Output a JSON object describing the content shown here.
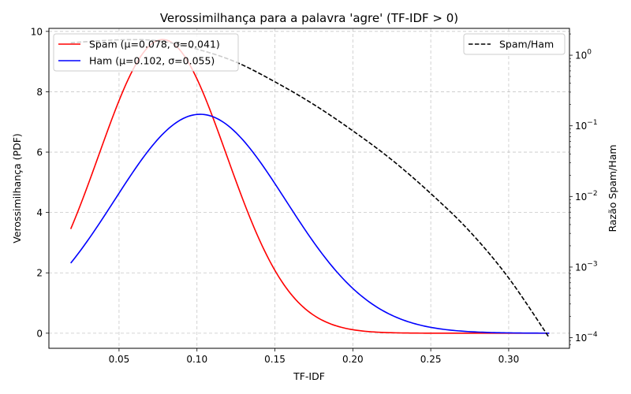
{
  "chart_data": {
    "type": "line",
    "title": "Verossimilhança para a palavra 'agre' (TF-IDF > 0)",
    "xlabel": "TF-IDF",
    "ylabel_left": "Verossimilhança (PDF)",
    "ylabel_right": "Razão Spam/Ham",
    "xlim": [
      0.005,
      0.339
    ],
    "ylim_left": [
      -0.5,
      10.1
    ],
    "ylim_right_log10": [
      -4.15,
      0.38
    ],
    "x_ticks": [
      "0.05",
      "0.10",
      "0.15",
      "0.20",
      "0.25",
      "0.30"
    ],
    "x_tick_values": [
      0.05,
      0.1,
      0.15,
      0.2,
      0.25,
      0.3
    ],
    "y_ticks_left": [
      "0",
      "2",
      "4",
      "6",
      "8",
      "10"
    ],
    "y_tick_values_left": [
      0,
      2,
      4,
      6,
      8,
      10
    ],
    "y_ticks_right_exponents": [
      "0",
      "−1",
      "−2",
      "−3",
      "−4"
    ],
    "y_tick_values_right_log10": [
      0,
      -1,
      -2,
      -3,
      -4
    ],
    "grid": true,
    "series": [
      {
        "name": "Spam (μ=0.078, σ=0.041)",
        "color": "#ff0000",
        "style": "solid",
        "axis": "left",
        "distribution": "normal",
        "mu": 0.078,
        "sigma": 0.041,
        "x_range": [
          0.019,
          0.326
        ]
      },
      {
        "name": "Ham (μ=0.102, σ=0.055)",
        "color": "#0000ff",
        "style": "solid",
        "axis": "left",
        "distribution": "normal",
        "mu": 0.102,
        "sigma": 0.055,
        "x_range": [
          0.019,
          0.326
        ]
      },
      {
        "name": "Spam/Ham",
        "color": "#000000",
        "style": "dashed",
        "axis": "right",
        "scale": "log",
        "x": [
          0.019,
          0.05,
          0.075,
          0.1,
          0.125,
          0.15,
          0.175,
          0.2,
          0.225,
          0.25,
          0.275,
          0.3,
          0.326
        ],
        "y": [
          1.5,
          1.65,
          1.6,
          1.22,
          0.8,
          0.42,
          0.2,
          0.085,
          0.033,
          0.011,
          0.0032,
          0.0007,
          0.0001
        ]
      }
    ],
    "legend_left_position": "upper-left",
    "legend_right_position": "upper-right"
  }
}
